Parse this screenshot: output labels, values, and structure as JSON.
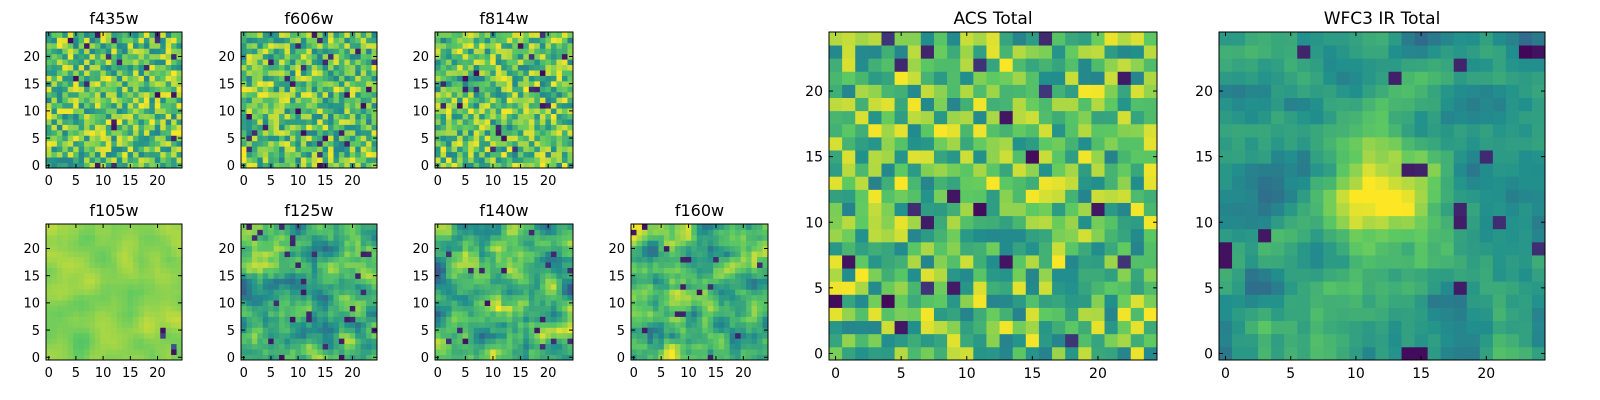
{
  "figure": {
    "panels": [
      {
        "title": "f435w"
      },
      {
        "title": "f606w"
      },
      {
        "title": "f814w"
      },
      {
        "title": "f105w"
      },
      {
        "title": "f125w"
      },
      {
        "title": "f140w"
      },
      {
        "title": "f160w"
      },
      {
        "title": "ACS Total"
      },
      {
        "title": "WFC3 IR Total"
      }
    ],
    "colormap": [
      "#440154",
      "#3b528b",
      "#21908d",
      "#5dc962",
      "#fde725"
    ]
  },
  "chart_data": [
    {
      "type": "heatmap",
      "title": "f435w",
      "x": [
        0,
        24
      ],
      "y": [
        0,
        24
      ],
      "xticks": [
        0,
        5,
        10,
        15,
        20
      ],
      "yticks": [
        0,
        5,
        10,
        15,
        20
      ],
      "texture": "pixel-noise"
    },
    {
      "type": "heatmap",
      "title": "f606w",
      "x": [
        0,
        24
      ],
      "y": [
        0,
        24
      ],
      "xticks": [
        0,
        5,
        10,
        15,
        20
      ],
      "yticks": [
        0,
        5,
        10,
        15,
        20
      ],
      "texture": "pixel-noise"
    },
    {
      "type": "heatmap",
      "title": "f814w",
      "x": [
        0,
        24
      ],
      "y": [
        0,
        24
      ],
      "xticks": [
        0,
        5,
        10,
        15,
        20
      ],
      "yticks": [
        0,
        5,
        10,
        15,
        20
      ],
      "texture": "pixel-noise"
    },
    {
      "type": "heatmap",
      "title": "f105w",
      "x": [
        0,
        24
      ],
      "y": [
        0,
        24
      ],
      "xticks": [
        0,
        5,
        10,
        15,
        20
      ],
      "yticks": [
        0,
        5,
        10,
        15,
        20
      ],
      "texture": "smooth"
    },
    {
      "type": "heatmap",
      "title": "f125w",
      "x": [
        0,
        24
      ],
      "y": [
        0,
        24
      ],
      "xticks": [
        0,
        5,
        10,
        15,
        20
      ],
      "yticks": [
        0,
        5,
        10,
        15,
        20
      ],
      "texture": "smooth-noise"
    },
    {
      "type": "heatmap",
      "title": "f140w",
      "x": [
        0,
        24
      ],
      "y": [
        0,
        24
      ],
      "xticks": [
        0,
        5,
        10,
        15,
        20
      ],
      "yticks": [
        0,
        5,
        10,
        15,
        20
      ],
      "texture": "smooth-noise"
    },
    {
      "type": "heatmap",
      "title": "f160w",
      "x": [
        0,
        24
      ],
      "y": [
        0,
        24
      ],
      "xticks": [
        0,
        5,
        10,
        15,
        20
      ],
      "yticks": [
        0,
        5,
        10,
        15,
        20
      ],
      "texture": "smooth-noise"
    },
    {
      "type": "heatmap",
      "title": "ACS Total",
      "x": [
        0,
        24
      ],
      "y": [
        0,
        24
      ],
      "xticks": [
        0,
        5,
        10,
        15,
        20
      ],
      "yticks": [
        0,
        5,
        10,
        15,
        20
      ],
      "texture": "pixel-noise"
    },
    {
      "type": "heatmap",
      "title": "WFC3 IR Total",
      "x": [
        0,
        24
      ],
      "y": [
        0,
        24
      ],
      "xticks": [
        0,
        5,
        10,
        15,
        20
      ],
      "yticks": [
        0,
        5,
        10,
        15,
        20
      ],
      "texture": "central-source"
    }
  ]
}
